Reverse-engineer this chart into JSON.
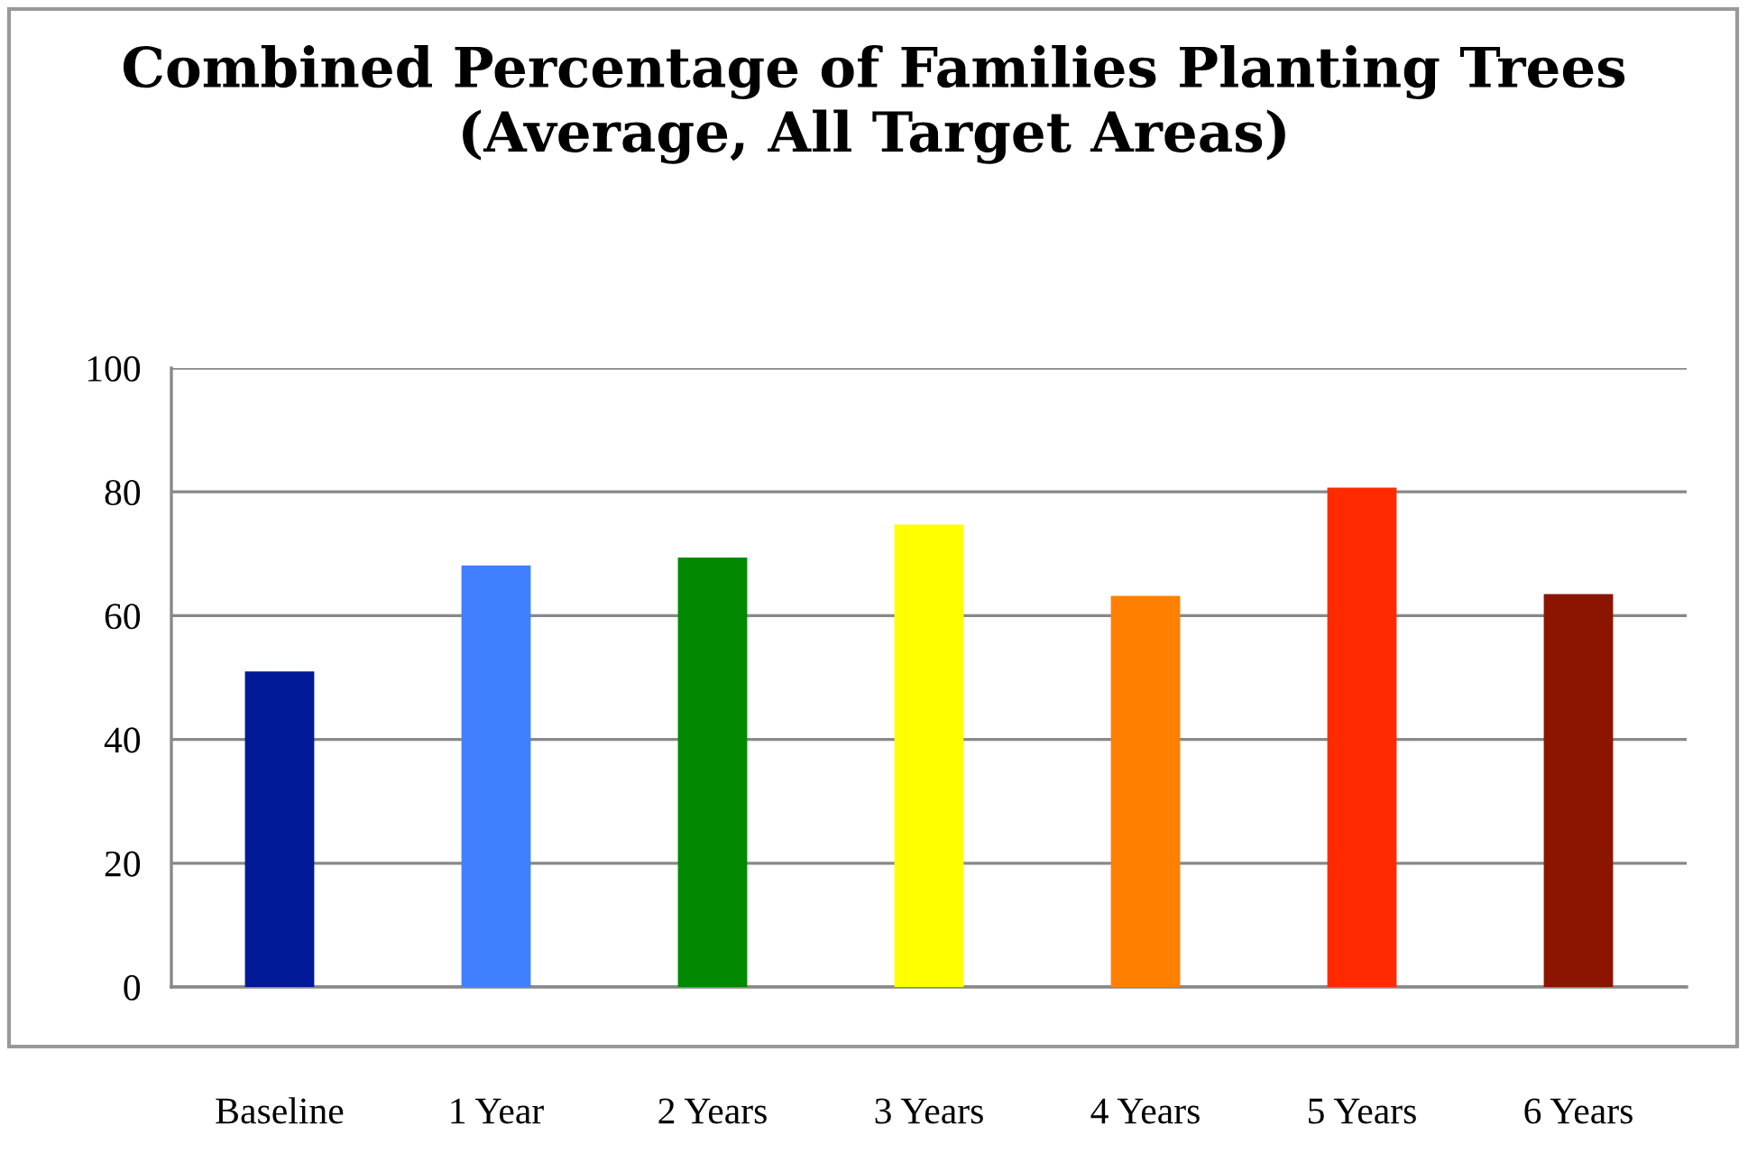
{
  "chart_data": {
    "type": "bar",
    "title": "Combined Percentage of Families Planting Trees\n(Average, All Target Areas)",
    "categories": [
      "Baseline",
      "1 Year",
      "2 Years",
      "3 Years",
      "4 Years",
      "5 Years",
      "6 Years"
    ],
    "values": [
      51,
      68.1,
      69.4,
      74.7,
      63.2,
      80.7,
      63.5
    ],
    "colors": [
      "#001a99",
      "#4080ff",
      "#008800",
      "#ffff00",
      "#ff8000",
      "#ff2a00",
      "#8b1500"
    ],
    "ylim": [
      0,
      100
    ],
    "yticks": [
      0,
      20,
      40,
      60,
      80,
      100
    ],
    "grid": "y",
    "legend": false
  }
}
